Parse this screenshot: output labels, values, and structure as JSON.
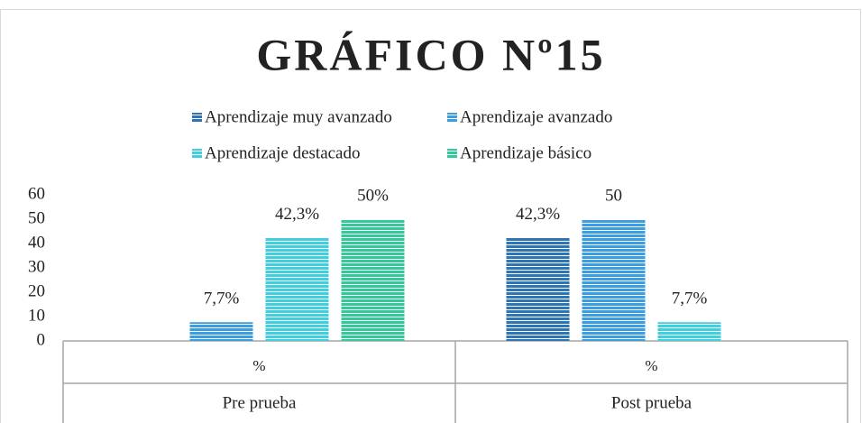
{
  "chart_data": {
    "type": "bar",
    "title": "GRÁFICO Nº15",
    "categories": [
      "Pre prueba",
      "Post prueba"
    ],
    "sub_categories": [
      "%",
      "%"
    ],
    "series": [
      {
        "name": "Aprendizaje muy avanzado",
        "color": "#2e75b6",
        "values": [
          null,
          42.3
        ],
        "value_labels": [
          null,
          "42,3%"
        ]
      },
      {
        "name": "Aprendizaje avanzado",
        "color": "#3a9ee0",
        "values": [
          7.7,
          50
        ],
        "value_labels": [
          "7,7%",
          "50"
        ]
      },
      {
        "name": "Aprendizaje destacado",
        "color": "#3fd0e0",
        "values": [
          42.3,
          7.7
        ],
        "value_labels": [
          "42,3%",
          "7,7%"
        ]
      },
      {
        "name": "Aprendizaje básico",
        "color": "#33c99a",
        "values": [
          50,
          null
        ],
        "value_labels": [
          "50%",
          null
        ]
      }
    ],
    "ylim": [
      0,
      60
    ],
    "yticks": [
      0,
      10,
      20,
      30,
      40,
      50,
      60
    ],
    "legend": "top"
  }
}
